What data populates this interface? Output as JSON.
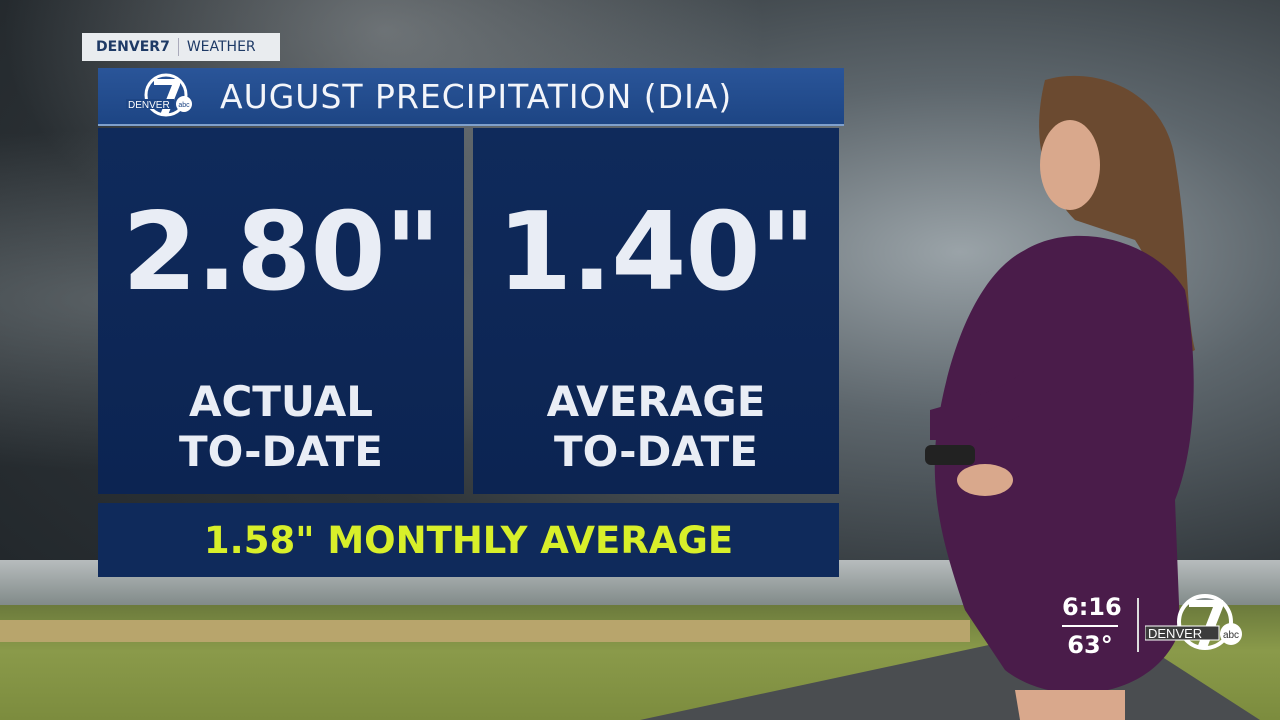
{
  "tag": {
    "brand": "DENVER7",
    "section": "WEATHER"
  },
  "title": "AUGUST PRECIPITATION (DIA)",
  "logo_text": {
    "station": "DENVER",
    "number": "7",
    "network": "abc"
  },
  "panels": [
    {
      "value": "2.80\"",
      "label1": "ACTUAL",
      "label2": "TO-DATE"
    },
    {
      "value": "1.40\"",
      "label1": "AVERAGE",
      "label2": "TO-DATE"
    }
  ],
  "monthly_average": "1.58\" MONTHLY AVERAGE",
  "bug": {
    "time": "6:16",
    "temperature": "63°"
  },
  "colors": {
    "panel": "#0f2a5b",
    "title_bar": "#2a5599",
    "highlight": "#d8ef2a"
  }
}
